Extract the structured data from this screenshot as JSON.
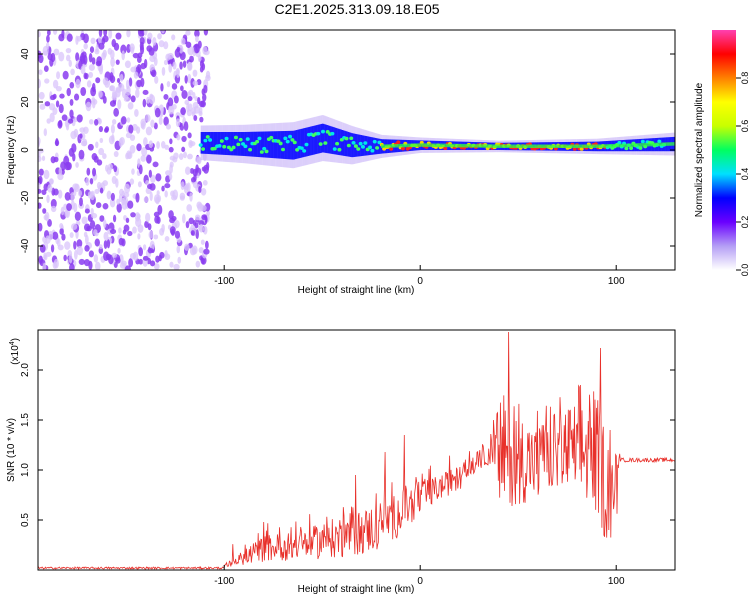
{
  "title": "C2E1.2025.313.09.18.E05",
  "colors": {
    "noise": "#8a3cf0",
    "noise_light": "#d9c4fb",
    "snr_line": "#e8302a",
    "axis": "#000000"
  },
  "chart_data": [
    {
      "type": "heatmap",
      "name": "spectrogram",
      "xlabel": "Height of straight line (km)",
      "ylabel": "Frequency (Hz)",
      "xlim": [
        -195,
        130
      ],
      "ylim": [
        -50,
        50
      ],
      "xticks": [
        -100,
        0,
        100
      ],
      "yticks": [
        -40,
        -20,
        0,
        20,
        40
      ],
      "xtick_labels": [
        "-100",
        "0",
        "100"
      ],
      "ytick_labels": [
        "-40",
        "-20",
        "0",
        "20",
        "40"
      ],
      "noise_region_km": [
        -195,
        -108
      ],
      "signal_band": [
        {
          "x": -112,
          "center": 3,
          "width": 9
        },
        {
          "x": -90,
          "center": 2.5,
          "width": 10
        },
        {
          "x": -65,
          "center": 2,
          "width": 12
        },
        {
          "x": -50,
          "center": 5,
          "width": 12
        },
        {
          "x": -35,
          "center": 2,
          "width": 10
        },
        {
          "x": -20,
          "center": 1.5,
          "width": 6
        },
        {
          "x": 0,
          "center": 2,
          "width": 4
        },
        {
          "x": 40,
          "center": 1.5,
          "width": 3
        },
        {
          "x": 90,
          "center": 1.5,
          "width": 4
        },
        {
          "x": 130,
          "center": 2.5,
          "width": 6
        }
      ],
      "colorbar": {
        "label": "Normalized spectral amplitude",
        "range": [
          0,
          1
        ],
        "ticks": [
          0.0,
          0.2,
          0.4,
          0.6,
          0.8
        ],
        "tick_labels": [
          "0.0",
          "0.2",
          "0.4",
          "0.6",
          "0.8"
        ],
        "colormap": [
          "#ffffff",
          "#b49ef5",
          "#6a00ff",
          "#0000ff",
          "#00e0ff",
          "#00ff60",
          "#c8ff00",
          "#ffff00",
          "#ff8000",
          "#ff0000",
          "#ff40b0"
        ]
      }
    },
    {
      "type": "line",
      "name": "snr",
      "xlabel": "Height of straight line (km)",
      "ylabel": "SNR (10 * v/v)",
      "y_multiplier": "(x10",
      "y_multiplier_exp": "4",
      "y_multiplier_close": ")",
      "xlim": [
        -195,
        130
      ],
      "ylim": [
        0,
        2.4
      ],
      "xticks": [
        -100,
        0,
        100
      ],
      "yticks": [
        0.5,
        1.0,
        1.5,
        2.0
      ],
      "xtick_labels": [
        "-100",
        "0",
        "100"
      ],
      "ytick_labels": [
        "0.5",
        "1.0",
        "1.5",
        "2.0"
      ],
      "baseline": {
        "x": [
          -195,
          -100
        ],
        "y": [
          0.02,
          0.02
        ]
      },
      "envelope": {
        "x": [
          -100,
          -90,
          -80,
          -60,
          -40,
          -30,
          -20,
          -10,
          0,
          10,
          20,
          30,
          35,
          40,
          50,
          60,
          70,
          80,
          90,
          95,
          100,
          102,
          110,
          130
        ],
        "low": [
          0.02,
          0.05,
          0.08,
          0.1,
          0.12,
          0.15,
          0.2,
          0.35,
          0.55,
          0.7,
          0.8,
          1.0,
          1.05,
          0.6,
          0.65,
          0.7,
          0.8,
          0.7,
          0.55,
          0.25,
          0.35,
          1.1,
          1.08,
          1.08
        ],
        "high": [
          0.05,
          0.2,
          0.35,
          0.4,
          0.55,
          0.6,
          0.7,
          0.8,
          0.9,
          0.95,
          1.05,
          1.2,
          1.3,
          1.7,
          1.6,
          1.45,
          1.6,
          1.7,
          1.75,
          1.4,
          1.2,
          1.15,
          1.13,
          1.13
        ]
      },
      "peaks": [
        {
          "x": -80,
          "y": 0.48
        },
        {
          "x": -33,
          "y": 0.95
        },
        {
          "x": -18,
          "y": 1.18
        },
        {
          "x": -8,
          "y": 1.35
        },
        {
          "x": 45,
          "y": 2.38
        },
        {
          "x": 62,
          "y": 1.3
        },
        {
          "x": 82,
          "y": 1.85
        },
        {
          "x": 92,
          "y": 2.22
        },
        {
          "x": 97,
          "y": 1.4
        }
      ],
      "plateau": {
        "x": [
          102,
          130
        ],
        "y": 1.1
      }
    }
  ]
}
